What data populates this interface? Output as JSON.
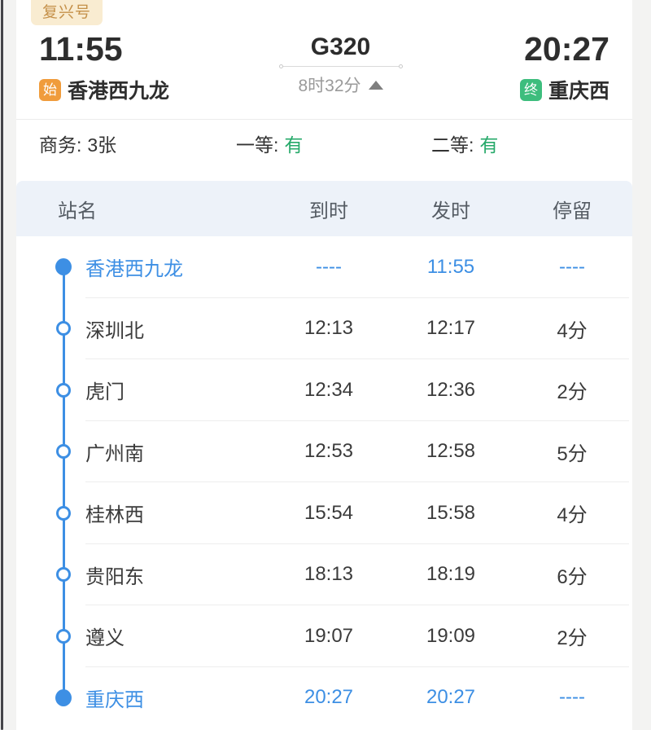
{
  "header": {
    "train_type_badge": "复兴号",
    "train_number": "G320",
    "duration": "8时32分",
    "departure_time": "11:55",
    "arrival_time": "20:27",
    "origin_badge": "始",
    "origin_station": "香港西九龙",
    "terminal_badge": "终",
    "terminal_station": "重庆西"
  },
  "seats": [
    {
      "label": "商务:",
      "value": "3张",
      "highlight": false
    },
    {
      "label": "一等:",
      "value": "有",
      "highlight": true
    },
    {
      "label": "二等:",
      "value": "有",
      "highlight": true
    }
  ],
  "table": {
    "headers": [
      "站名",
      "到时",
      "发时",
      "停留"
    ],
    "rows": [
      {
        "station": "香港西九龙",
        "arrive": "----",
        "depart": "11:55",
        "stop": "----",
        "terminal": true
      },
      {
        "station": "深圳北",
        "arrive": "12:13",
        "depart": "12:17",
        "stop": "4分",
        "terminal": false
      },
      {
        "station": "虎门",
        "arrive": "12:34",
        "depart": "12:36",
        "stop": "2分",
        "terminal": false
      },
      {
        "station": "广州南",
        "arrive": "12:53",
        "depart": "12:58",
        "stop": "5分",
        "terminal": false
      },
      {
        "station": "桂林西",
        "arrive": "15:54",
        "depart": "15:58",
        "stop": "4分",
        "terminal": false
      },
      {
        "station": "贵阳东",
        "arrive": "18:13",
        "depart": "18:19",
        "stop": "6分",
        "terminal": false
      },
      {
        "station": "遵义",
        "arrive": "19:07",
        "depart": "19:09",
        "stop": "2分",
        "terminal": false
      },
      {
        "station": "重庆西",
        "arrive": "20:27",
        "depart": "20:27",
        "stop": "----",
        "terminal": true
      }
    ]
  },
  "colors": {
    "accent_blue": "#3d8fe4",
    "origin_badge_orange": "#f09c3c",
    "terminal_badge_green": "#3dbd7d",
    "available_green": "#26a96a",
    "fuxing_badge_bg": "#f9ecd1",
    "fuxing_badge_text": "#c5914a",
    "table_header_bg": "#edf2f9"
  }
}
